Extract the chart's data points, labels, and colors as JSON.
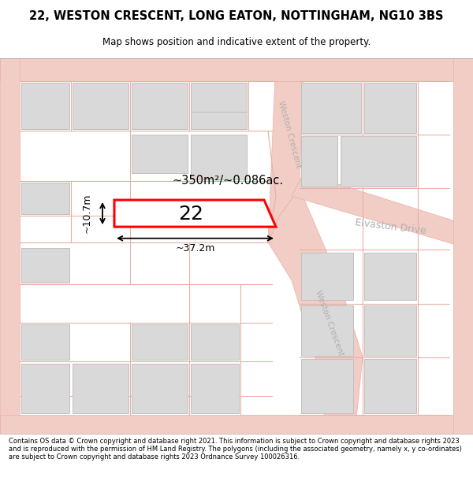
{
  "title_line1": "22, WESTON CRESCENT, LONG EATON, NOTTINGHAM, NG10 3BS",
  "title_line2": "Map shows position and indicative extent of the property.",
  "footer": "Contains OS data © Crown copyright and database right 2021. This information is subject to Crown copyright and database rights 2023 and is reproduced with the permission of HM Land Registry. The polygons (including the associated geometry, namely x, y co-ordinates) are subject to Crown copyright and database rights 2023 Ordnance Survey 100026316.",
  "map_bg": "#ffffff",
  "road_color": "#f2cdc5",
  "road_line_color": "#e8b0a4",
  "building_fill": "#d9d9d9",
  "building_edge": "#c0c0c0",
  "highlight_fill": "#ffffff",
  "highlight_edge": "#ff0000",
  "highlight_lw": 2.2,
  "label_area": "~350m²/~0.086ac.",
  "label_width": "~37.2m",
  "label_height": "~10.7m",
  "label_number": "22",
  "road_label_wc1": "Weston Crescent",
  "road_label_wc2": "Weston Crescent",
  "road_label_ed": "Elvaston Drive"
}
